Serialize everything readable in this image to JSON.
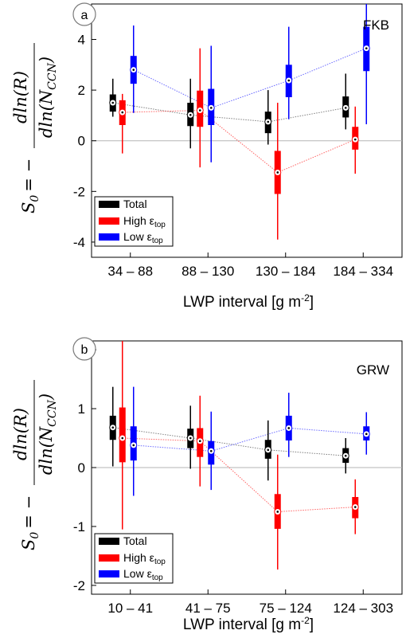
{
  "chart_data": [
    {
      "type": "box",
      "panel": "a",
      "site": "FKB",
      "xlabel_main": "LWP interval [g m",
      "xlabel_sup": "-2",
      "xlabel_tail": "]",
      "ylabel": {
        "lhs": "S",
        "lhs_sub": "0",
        "eq": "= −",
        "numerator": "dln(R)",
        "denominator": "dln(N",
        "denominator_sub": "CCN",
        "denominator_close": ")"
      },
      "categories": [
        "34 – 88",
        "88 – 130",
        "130 – 184",
        "184 – 334"
      ],
      "ylim": [
        -4.6,
        5.4
      ],
      "yticks": [
        -4,
        -2,
        0,
        2,
        4
      ],
      "legend": [
        "Total",
        "High ε",
        "Low ε"
      ],
      "legend_sub": "top",
      "series": [
        {
          "name": "Total",
          "color": "#000000",
          "line_color": "#808080",
          "median": [
            1.5,
            1.02,
            0.75,
            1.3
          ],
          "q1": [
            1.15,
            0.58,
            0.3,
            0.92
          ],
          "q3": [
            1.83,
            1.5,
            1.15,
            1.75
          ],
          "whisker_low": [
            0.95,
            -0.3,
            -0.15,
            0.45
          ],
          "whisker_high": [
            2.45,
            2.45,
            2.0,
            2.65
          ]
        },
        {
          "name": "High ε top",
          "color": "#ff0000",
          "line_color": "#ff6666",
          "median": [
            1.12,
            1.2,
            -1.25,
            0.05
          ],
          "q1": [
            0.62,
            0.55,
            -2.1,
            -0.35
          ],
          "q3": [
            1.6,
            1.98,
            -0.4,
            0.55
          ],
          "whisker_low": [
            -0.5,
            -1.05,
            -3.9,
            -1.3
          ],
          "whisker_high": [
            1.85,
            3.65,
            1.5,
            1.35
          ]
        },
        {
          "name": "Low ε top",
          "color": "#0000ff",
          "line_color": "#6b6bff",
          "median": [
            2.8,
            1.3,
            2.38,
            3.65
          ],
          "q1": [
            2.25,
            0.62,
            1.72,
            2.75
          ],
          "q3": [
            3.35,
            2.05,
            3.0,
            4.5
          ],
          "whisker_low": [
            1.1,
            -0.85,
            0.85,
            0.65
          ],
          "whisker_high": [
            4.55,
            3.75,
            4.5,
            5.4
          ]
        }
      ]
    },
    {
      "type": "box",
      "panel": "b",
      "site": "GRW",
      "xlabel_main": "LWP interval [g m",
      "xlabel_sup": "-2",
      "xlabel_tail": "]",
      "ylabel": {
        "lhs": "S",
        "lhs_sub": "0",
        "eq": "= −",
        "numerator": "dln(R)",
        "denominator": "dln(N",
        "denominator_sub": "CCN",
        "denominator_close": ")"
      },
      "categories": [
        "10 – 41",
        "41 – 75",
        "75 – 124",
        "124 – 303"
      ],
      "ylim": [
        -2.15,
        2.15
      ],
      "yticks": [
        -2,
        -1,
        0,
        1,
        2
      ],
      "legend": [
        "Total",
        "High ε",
        "Low ε"
      ],
      "legend_sub": "top",
      "series": [
        {
          "name": "Total",
          "color": "#000000",
          "line_color": "#808080",
          "median": [
            0.68,
            0.5,
            0.3,
            0.2
          ],
          "q1": [
            0.47,
            0.33,
            0.15,
            0.08
          ],
          "q3": [
            0.88,
            0.66,
            0.47,
            0.33
          ],
          "whisker_low": [
            0.02,
            -0.02,
            -0.22,
            -0.1
          ],
          "whisker_high": [
            1.37,
            1.05,
            0.8,
            0.5
          ]
        },
        {
          "name": "High ε top",
          "color": "#ff0000",
          "line_color": "#ff6666",
          "median": [
            0.5,
            0.45,
            -0.75,
            -0.67
          ],
          "q1": [
            0.09,
            0.18,
            -1.04,
            -0.86
          ],
          "q3": [
            1.02,
            0.67,
            -0.45,
            -0.5
          ],
          "whisker_low": [
            -1.05,
            -0.32,
            -1.73,
            -1.13
          ],
          "whisker_high": [
            2.15,
            1.22,
            0.22,
            -0.2
          ]
        },
        {
          "name": "Low ε top",
          "color": "#0000ff",
          "line_color": "#6b6bff",
          "median": [
            0.38,
            0.28,
            0.67,
            0.57
          ],
          "q1": [
            0.12,
            0.05,
            0.46,
            0.46
          ],
          "q3": [
            0.7,
            0.45,
            0.88,
            0.7
          ],
          "whisker_low": [
            -0.48,
            -0.38,
            0.18,
            0.22
          ],
          "whisker_high": [
            1.37,
            0.95,
            1.27,
            0.94
          ]
        }
      ]
    }
  ]
}
